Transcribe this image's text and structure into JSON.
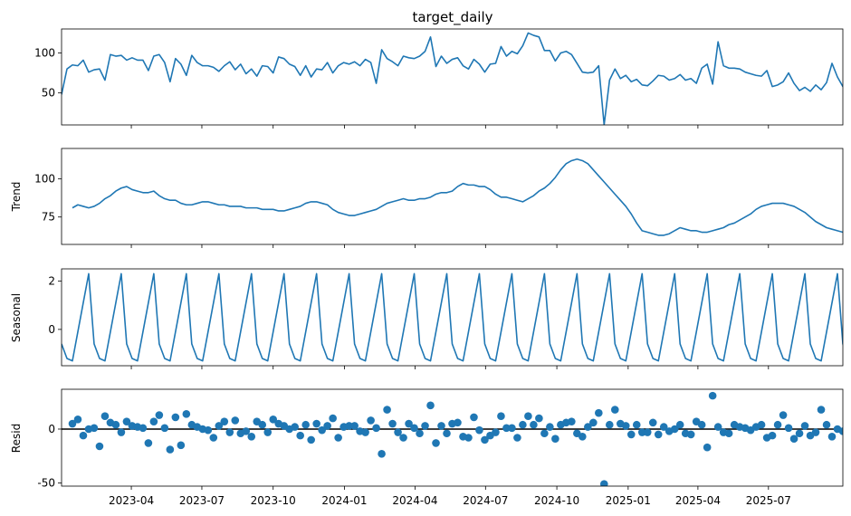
{
  "chart_data": [
    {
      "type": "line",
      "title": "target_daily",
      "ylabel": "",
      "ylim": [
        10,
        130
      ],
      "yticks": [
        50,
        100
      ],
      "x_start": "2023-01-01",
      "x_end": "2025-10-05",
      "x_step_weeks": 1,
      "values": [
        48,
        80,
        85,
        84,
        91,
        76,
        79,
        80,
        66,
        98,
        96,
        97,
        91,
        94,
        91,
        91,
        78,
        96,
        98,
        88,
        64,
        93,
        86,
        72,
        97,
        88,
        84,
        84,
        82,
        77,
        84,
        89,
        79,
        86,
        74,
        80,
        71,
        84,
        83,
        75,
        95,
        93,
        86,
        83,
        72,
        84,
        70,
        80,
        79,
        88,
        75,
        84,
        88,
        86,
        89,
        84,
        92,
        88,
        62,
        104,
        93,
        89,
        84,
        96,
        94,
        93,
        96,
        102,
        120,
        83,
        96,
        87,
        92,
        94,
        84,
        80,
        92,
        86,
        76,
        86,
        87,
        108,
        96,
        102,
        99,
        109,
        125,
        122,
        120,
        103,
        103,
        90,
        100,
        102,
        98,
        87,
        76,
        75,
        76,
        84,
        10,
        66,
        80,
        68,
        72,
        64,
        67,
        60,
        59,
        65,
        72,
        71,
        66,
        68,
        73,
        66,
        68,
        62,
        81,
        86,
        61,
        114,
        84,
        81,
        81,
        80,
        76,
        74,
        72,
        71,
        78,
        58,
        60,
        64,
        75,
        62,
        53,
        57,
        52,
        60,
        54,
        63,
        87,
        70,
        58,
        64,
        64,
        58,
        72,
        76,
        73,
        65,
        76,
        72,
        75,
        77,
        76,
        69,
        57,
        56,
        68,
        67,
        62,
        65,
        56,
        60
      ],
      "color": "#1f77b4"
    },
    {
      "type": "line",
      "ylabel": "Trend",
      "ylim": [
        57,
        120
      ],
      "yticks": [
        75,
        100
      ],
      "first_index": 2,
      "values": [
        81,
        83,
        82,
        81,
        82,
        84,
        87,
        89,
        92,
        94,
        95,
        93,
        92,
        91,
        91,
        92,
        89,
        87,
        86,
        86,
        84,
        83,
        83,
        84,
        85,
        85,
        84,
        83,
        83,
        82,
        82,
        82,
        81,
        81,
        81,
        80,
        80,
        80,
        79,
        79,
        80,
        81,
        82,
        84,
        85,
        85,
        84,
        83,
        80,
        78,
        77,
        76,
        76,
        77,
        78,
        79,
        80,
        82,
        84,
        85,
        86,
        87,
        86,
        86,
        87,
        87,
        88,
        90,
        91,
        91,
        92,
        95,
        97,
        96,
        96,
        95,
        95,
        93,
        90,
        88,
        88,
        87,
        86,
        85,
        87,
        89,
        92,
        94,
        97,
        101,
        106,
        110,
        112,
        113,
        112,
        110,
        106,
        102,
        98,
        94,
        90,
        86,
        82,
        77,
        71,
        66,
        65,
        64,
        63,
        63,
        64,
        66,
        68,
        67,
        66,
        66,
        65,
        65,
        66,
        67,
        68,
        70,
        71,
        73,
        75,
        77,
        80,
        82,
        83,
        84,
        84,
        84,
        83,
        82,
        80,
        78,
        75,
        72,
        70,
        68,
        67,
        66,
        65,
        64,
        62,
        61,
        60,
        60,
        59,
        58,
        60,
        62,
        63,
        64,
        65,
        66,
        67,
        66,
        65,
        65,
        66,
        68,
        70,
        72,
        73,
        74,
        74,
        74,
        73,
        71,
        69,
        67,
        65,
        64,
        63,
        62,
        62,
        61,
        61
      ],
      "color": "#1f77b4"
    },
    {
      "type": "line",
      "ylabel": "Seasonal",
      "ylim": [
        -1.5,
        2.5
      ],
      "yticks": [
        0,
        2
      ],
      "period_weeks": 6,
      "pattern": [
        -0.6,
        -1.2,
        -1.3,
        -0.1,
        1.1,
        2.3
      ],
      "color": "#1f77b4"
    },
    {
      "type": "scatter",
      "xlabel": "",
      "ylabel": "Resid",
      "ylim": [
        -53,
        37
      ],
      "yticks": [
        -50,
        0
      ],
      "baseline": 0,
      "first_index": 2,
      "x_ticks": [
        "2023-04",
        "2023-07",
        "2023-10",
        "2024-01",
        "2024-04",
        "2024-07",
        "2024-10",
        "2025-01",
        "2025-04",
        "2025-07"
      ],
      "values": [
        5,
        9,
        -6,
        0,
        1,
        -16,
        12,
        6,
        4,
        -3,
        7,
        3,
        2,
        1,
        -13,
        7,
        13,
        1,
        -19,
        11,
        -15,
        14,
        4,
        2,
        0,
        -1,
        -8,
        3,
        7,
        -3,
        8,
        -4,
        -2,
        -7,
        7,
        4,
        -3,
        9,
        5,
        3,
        0,
        2,
        -6,
        4,
        -10,
        5,
        -1,
        3,
        10,
        -8,
        2,
        3,
        3,
        -2,
        -3,
        8,
        1,
        -23,
        18,
        5,
        -3,
        -8,
        5,
        1,
        -4,
        3,
        22,
        -13,
        3,
        -4,
        5,
        6,
        -7,
        -8,
        11,
        -1,
        -10,
        -6,
        -3,
        12,
        1,
        1,
        -8,
        4,
        12,
        4,
        10,
        -4,
        2,
        -9,
        4,
        6,
        7,
        -4,
        -7,
        2,
        6,
        15,
        -51,
        4,
        18,
        5,
        3,
        -5,
        4,
        -3,
        -3,
        6,
        -5,
        2,
        -2,
        0,
        4,
        -4,
        -5,
        7,
        4,
        -17,
        31,
        2,
        -3,
        -4,
        4,
        2,
        1,
        -1,
        2,
        4,
        -8,
        -6,
        4,
        13,
        1,
        -9,
        -4,
        3,
        -6,
        -3,
        18,
        4,
        -7,
        0,
        -2,
        -9,
        3,
        8,
        3,
        -7,
        4,
        6,
        8,
        3,
        -9,
        -9,
        5,
        6,
        -1
      ],
      "color": "#1f77b4"
    }
  ]
}
